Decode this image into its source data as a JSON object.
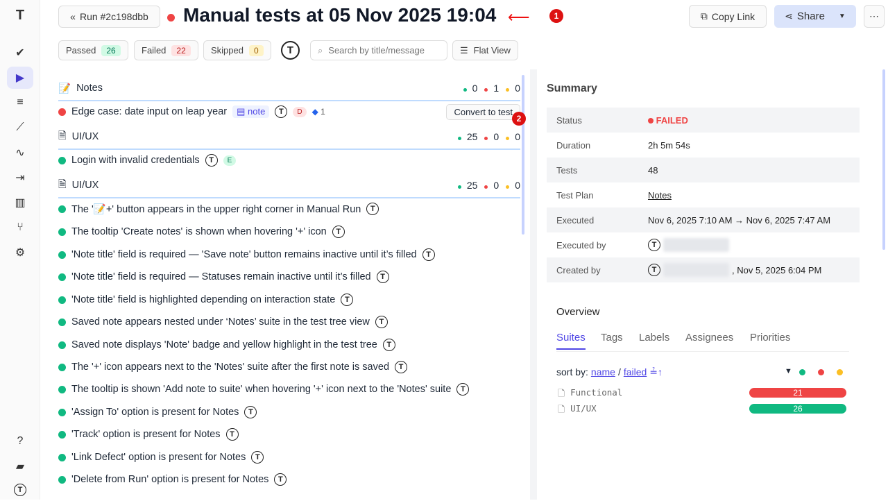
{
  "header": {
    "run_label": "Run #2c198dbb",
    "title": "Manual tests at 05 Nov 2025 19:04",
    "copy_link": "Copy Link",
    "share": "Share",
    "annotation_1": "1",
    "annotation_2": "2"
  },
  "filters": {
    "passed_label": "Passed",
    "passed": "26",
    "failed_label": "Failed",
    "failed": "22",
    "skipped_label": "Skipped",
    "skipped": "0",
    "search_placeholder": "Search by title/message",
    "flat_view": "Flat View"
  },
  "tree": [
    {
      "type": "suite",
      "title": "Notes",
      "green": "0",
      "red": "1",
      "yellow": "0"
    },
    {
      "type": "test",
      "status": "failed",
      "title": "Edge case: date input on leap year",
      "badge": "note",
      "assignee": "D",
      "defects": "1",
      "action": "Convert to test"
    },
    {
      "type": "suite",
      "title": "UI/UX",
      "green": "25",
      "red": "0",
      "yellow": "0"
    },
    {
      "type": "test",
      "status": "passed",
      "title": "Login with invalid credentials",
      "assignee": "E"
    },
    {
      "type": "suite",
      "title": "UI/UX",
      "green": "25",
      "red": "0",
      "yellow": "0"
    },
    {
      "type": "test",
      "status": "passed",
      "title": "The '📝+' button appears in the upper right corner in Manual Run"
    },
    {
      "type": "test",
      "status": "passed",
      "title": "The tooltip 'Create notes' is shown when hovering '+' icon"
    },
    {
      "type": "test",
      "status": "passed",
      "title": "'Note title' field is required — 'Save note' button remains inactive until it’s filled"
    },
    {
      "type": "test",
      "status": "passed",
      "title": "'Note title' field is required — Statuses remain inactive until it’s filled"
    },
    {
      "type": "test",
      "status": "passed",
      "title": "'Note title' field is highlighted depending on interaction state"
    },
    {
      "type": "test",
      "status": "passed",
      "title": "Saved note appears nested under ‘Notes’ suite in the test tree view"
    },
    {
      "type": "test",
      "status": "passed",
      "title": "Saved note displays 'Note' badge and yellow highlight in the test tree"
    },
    {
      "type": "test",
      "status": "passed",
      "title": "The '+' icon appears next to the 'Notes' suite after the first note is saved"
    },
    {
      "type": "test",
      "status": "passed",
      "title": "The tooltip is shown 'Add note to suite' when hovering '+' icon next to the 'Notes' suite"
    },
    {
      "type": "test",
      "status": "passed",
      "title": "'Assign To' option is present for Notes"
    },
    {
      "type": "test",
      "status": "passed",
      "title": "'Track' option is present for Notes"
    },
    {
      "type": "test",
      "status": "passed",
      "title": "'Link Defect' option is present for Notes"
    },
    {
      "type": "test",
      "status": "passed",
      "title": "'Delete from Run' option is present for Notes"
    }
  ],
  "summary": {
    "heading": "Summary",
    "rows": [
      {
        "k": "Status",
        "v": "FAILED"
      },
      {
        "k": "Duration",
        "v": "2h 5m 54s"
      },
      {
        "k": "Tests",
        "v": "48"
      },
      {
        "k": "Test Plan",
        "v": "Notes"
      },
      {
        "k": "Executed",
        "v": "Nov 6, 2025 7:10 AM → Nov 6, 2025 7:47 AM"
      },
      {
        "k": "Executed by",
        "v": ""
      },
      {
        "k": "Created by",
        "v": ", Nov 5, 2025 6:04 PM"
      }
    ]
  },
  "overview": {
    "heading": "Overview",
    "tabs": [
      "Suites",
      "Tags",
      "Labels",
      "Assignees",
      "Priorities"
    ],
    "sort_by": "sort by:",
    "sort_name": "name",
    "sort_sep": "/",
    "sort_failed": "failed",
    "suites": [
      {
        "name": "Functional",
        "value": "21",
        "color": "#ef4444"
      },
      {
        "name": "UI/UX",
        "value": "26",
        "color": "#10b981"
      }
    ]
  },
  "colors": {
    "accent": "#4f46e5",
    "passed": "#10b981",
    "failed": "#ef4444",
    "skipped": "#fbbf24"
  }
}
